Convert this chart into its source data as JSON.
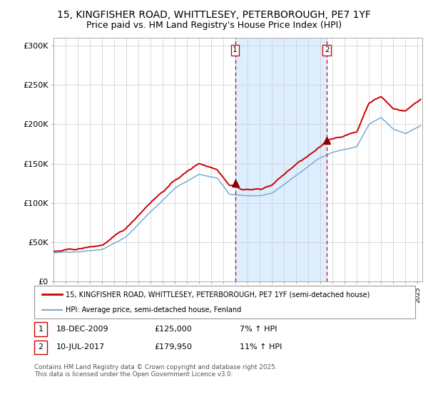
{
  "title_line1": "15, KINGFISHER ROAD, WHITTLESEY, PETERBOROUGH, PE7 1YF",
  "title_line2": "Price paid vs. HM Land Registry's House Price Index (HPI)",
  "ylim": [
    0,
    310000
  ],
  "yticks": [
    0,
    50000,
    100000,
    150000,
    200000,
    250000,
    300000
  ],
  "ytick_labels": [
    "£0",
    "£50K",
    "£100K",
    "£150K",
    "£200K",
    "£250K",
    "£300K"
  ],
  "property_color": "#cc0000",
  "hpi_color": "#7aabcf",
  "purchase1_date": 2009.96,
  "purchase1_price": 125000,
  "purchase2_date": 2017.53,
  "purchase2_price": 179950,
  "vline_color": "#cc0000",
  "shade_color": "#ddeeff",
  "legend_property_label": "15, KINGFISHER ROAD, WHITTLESEY, PETERBOROUGH, PE7 1YF (semi-detached house)",
  "legend_hpi_label": "HPI: Average price, semi-detached house, Fenland",
  "table_row1": [
    "1",
    "18-DEC-2009",
    "£125,000",
    "7% ↑ HPI"
  ],
  "table_row2": [
    "2",
    "10-JUL-2017",
    "£179,950",
    "11% ↑ HPI"
  ],
  "footer_text": "Contains HM Land Registry data © Crown copyright and database right 2025.\nThis data is licensed under the Open Government Licence v3.0.",
  "title_fontsize": 10,
  "subtitle_fontsize": 9
}
